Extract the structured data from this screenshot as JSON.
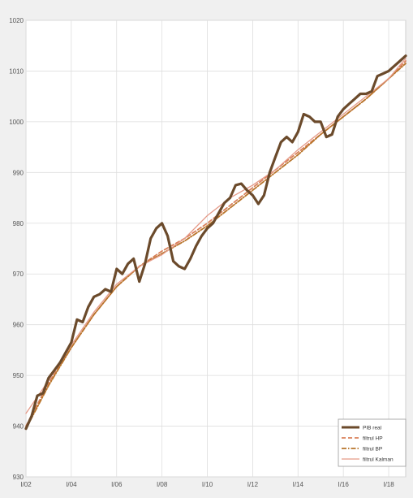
{
  "chart_data": {
    "type": "line",
    "title": "",
    "xlabel": "",
    "ylabel": "",
    "ylim": [
      930,
      1020
    ],
    "xlim": [
      0,
      67
    ],
    "grid": true,
    "legend_position": "bottom-right",
    "yticks": [
      930,
      940,
      950,
      960,
      970,
      980,
      990,
      1000,
      1010,
      1020
    ],
    "xticks": [
      {
        "q": 0,
        "label": "I/02"
      },
      {
        "q": 8,
        "label": "I/04"
      },
      {
        "q": 16,
        "label": "I/06"
      },
      {
        "q": 24,
        "label": "I/08"
      },
      {
        "q": 32,
        "label": "I/10"
      },
      {
        "q": 40,
        "label": "I/12"
      },
      {
        "q": 48,
        "label": "I/14"
      },
      {
        "q": 56,
        "label": "I/16"
      },
      {
        "q": 64,
        "label": "I/18"
      }
    ],
    "series": [
      {
        "name": "PIB real",
        "color": "#6b4a2b",
        "style": "solid-thick",
        "x": [
          0,
          1,
          2,
          3,
          4,
          5,
          6,
          7,
          8,
          9,
          10,
          11,
          12,
          13,
          14,
          15,
          16,
          17,
          18,
          19,
          20,
          21,
          22,
          23,
          24,
          25,
          26,
          27,
          28,
          29,
          30,
          31,
          32,
          33,
          34,
          35,
          36,
          37,
          38,
          39,
          40,
          41,
          42,
          43,
          44,
          45,
          46,
          47,
          48,
          49,
          50,
          51,
          52,
          53,
          54,
          55,
          56,
          57,
          58,
          59,
          60,
          61,
          62,
          63,
          64,
          65,
          66,
          67
        ],
        "values": [
          939.5,
          942,
          946,
          946.5,
          949.5,
          951,
          952.5,
          954.5,
          956.5,
          961,
          960.5,
          963.5,
          965.5,
          966,
          967,
          966.5,
          971,
          970,
          972,
          973,
          968.5,
          972,
          977,
          979,
          980,
          977.5,
          972.5,
          971.5,
          971,
          973,
          975.5,
          977.5,
          979,
          980,
          982,
          984,
          985,
          987.5,
          987.8,
          986.5,
          985.5,
          983.8,
          985.5,
          990,
          993,
          996,
          997,
          996,
          998,
          1001.5,
          1001,
          1000,
          1000,
          997,
          997.5,
          1001,
          1002.5,
          1003.5,
          1004.5,
          1005.5,
          1005.5,
          1006,
          1009,
          1009.5,
          1010,
          1011,
          1012,
          1013
        ]
      },
      {
        "name": "filtrul HP",
        "color": "#d9805a",
        "style": "dashed",
        "x": [
          0,
          4,
          8,
          12,
          16,
          20,
          24,
          28,
          32,
          36,
          40,
          44,
          48,
          52,
          56,
          60,
          64,
          67
        ],
        "values": [
          940,
          948.5,
          955.5,
          962,
          967.5,
          971.5,
          974.5,
          977,
          980,
          983.5,
          987,
          990.5,
          994,
          997.5,
          1001,
          1004.5,
          1008.5,
          1012
        ]
      },
      {
        "name": "filtrul BP",
        "color": "#b8742a",
        "style": "dashdot",
        "x": [
          0,
          4,
          8,
          12,
          16,
          20,
          24,
          28,
          32,
          36,
          40,
          44,
          48,
          52,
          56,
          60,
          64,
          67
        ],
        "values": [
          939.5,
          948,
          955.5,
          962,
          967.5,
          971.5,
          974,
          976.5,
          979.5,
          983,
          986.5,
          990,
          993.5,
          997.5,
          1001,
          1004.5,
          1008.5,
          1011.5
        ]
      },
      {
        "name": "filtrul Kalman",
        "color": "#e59a88",
        "style": "solid-thin",
        "x": [
          0,
          4,
          8,
          12,
          16,
          20,
          24,
          28,
          32,
          36,
          40,
          44,
          48,
          52,
          56,
          60,
          64,
          67
        ],
        "values": [
          942.5,
          949,
          956,
          962.5,
          968,
          971.5,
          973.8,
          977,
          981.5,
          985,
          987.5,
          990.5,
          994.5,
          998,
          1001.5,
          1005,
          1008.5,
          1012.5
        ]
      }
    ]
  }
}
